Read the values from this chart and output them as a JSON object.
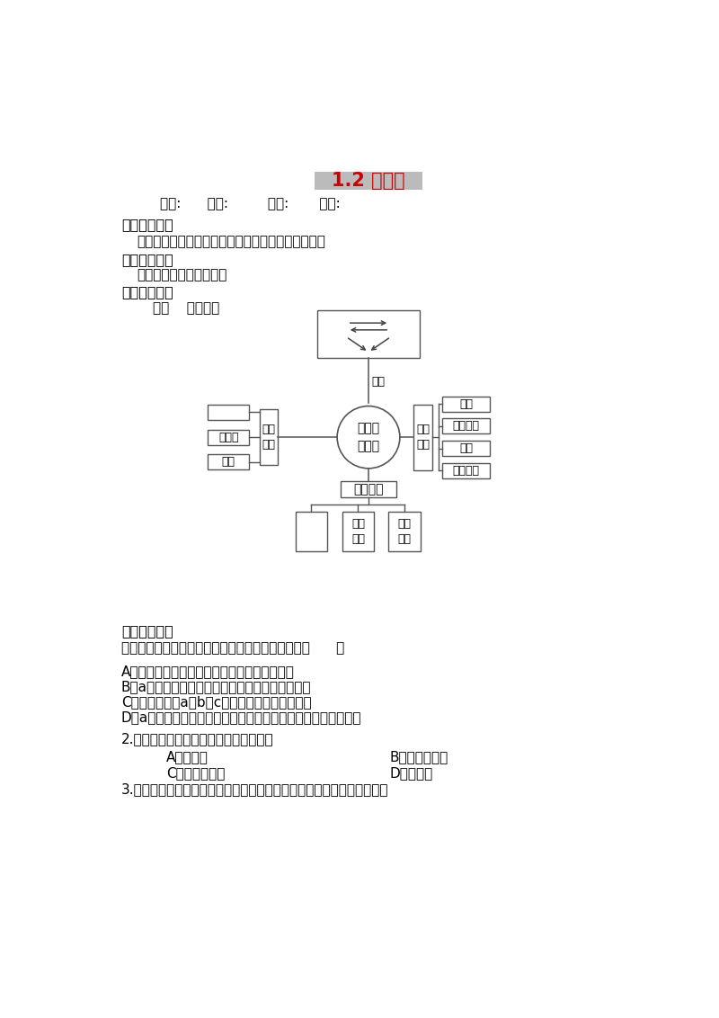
{
  "title": "1.2 内环境",
  "title_color": "#CC0000",
  "title_bg": "#BBBBBB",
  "subtitle": "班级:      姓名:         小组:       评价:",
  "section1_header": "《学习目标》",
  "section1_header_brackets": "[学习目标]",
  "section1_content": "说明内环境稳态及其生理意义，简述稳态的调节机制",
  "section2_header": "《重点难点》",
  "section2_content": "内环境稳态及其生理意义",
  "section3_header": "《导学流程》",
  "section3_sub": "一、    基础感知",
  "example_header": "《例题精析》",
  "example_q1": "如图是人体局部内环境示意图。以下叙述正确的是（      ）",
  "example_a": "A．从图中可以看出人体内大多数水位于细胞外",
  "example_b": "B．a中水分的主要功能是运输营养物质和代谢废物",
  "example_c": "C．内环境是由a、b、c共同组成的，被称为体液",
  "example_d": "D．a中溶解的物质（如血红蛋白和血浆蛋白）都是内环境的成分",
  "q2": "2.酷暑季节，室外工作的工人应多喝（）",
  "q2_a": "A、盐汽水",
  "q2_b": "B、核酸型饮料",
  "q2_c": "C、蛋白型饮料",
  "q2_d": "D、纯净水",
  "q3": "3.班氏丝虫寄生在人体淡巴管内后，常造成人体下肢肿胀，这是由于（）",
  "bg_color": "#FFFFFF",
  "text_color": "#000000",
  "diagram": {
    "center_label": "内环境\n与稳态",
    "left_branch_label": "理化\n性质",
    "left_items": [
      "",
      "酸煉度",
      "温度"
    ],
    "right_branch_label": "参与\n系统",
    "right_items": [
      "系统",
      "消化系统",
      "系统",
      "泌尿系统"
    ],
    "bottom_branch_label": "调节机制",
    "bottom_items": [
      "",
      "体液\n调节",
      "免疫\n调节"
    ],
    "top_connection_label": "组成"
  }
}
